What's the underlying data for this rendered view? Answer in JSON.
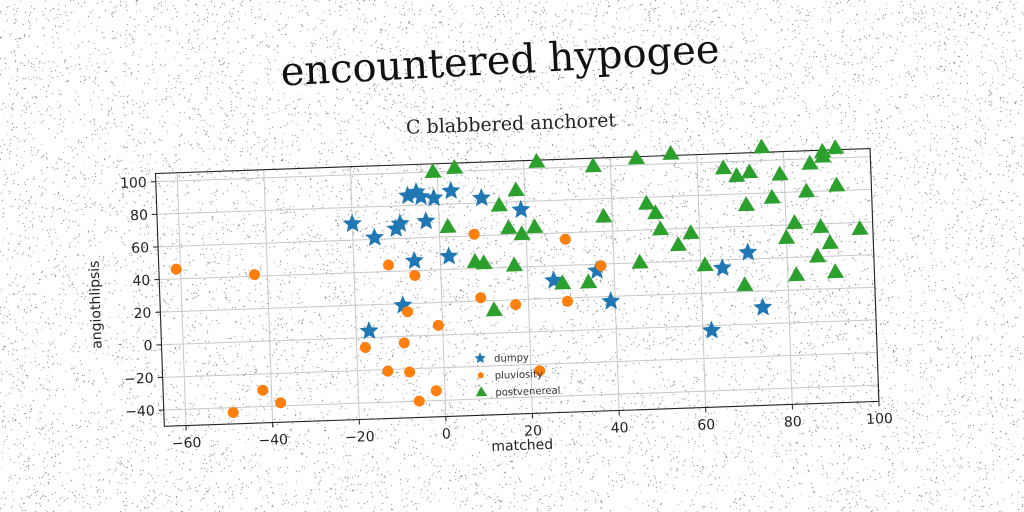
{
  "page": {
    "title": "encountered hypogee"
  },
  "chart_data": {
    "type": "scatter",
    "title": "C blabbered anchoret",
    "xlabel": "matched",
    "ylabel": "angiothlipsis",
    "xlim": [
      -65,
      100
    ],
    "ylim": [
      -50,
      105
    ],
    "xticks": [
      -60,
      -40,
      -20,
      0,
      20,
      40,
      60,
      80,
      100
    ],
    "yticks": [
      -40,
      -20,
      0,
      20,
      40,
      60,
      80,
      100
    ],
    "grid": true,
    "legend": "lower-center",
    "series": [
      {
        "name": "dumpy",
        "marker": "star",
        "color": "#1f77b4",
        "points": [
          [
            -20,
            70
          ],
          [
            -17,
            4
          ],
          [
            -15,
            61
          ],
          [
            -10,
            66
          ],
          [
            -9,
            69
          ],
          [
            -7,
            86
          ],
          [
            -5,
            88
          ],
          [
            -4,
            85
          ],
          [
            -1,
            84
          ],
          [
            3,
            88
          ],
          [
            10,
            83
          ],
          [
            -9,
            19
          ],
          [
            -6,
            46
          ],
          [
            2,
            48
          ],
          [
            -3,
            70
          ],
          [
            19,
            75
          ],
          [
            26,
            31
          ],
          [
            36,
            36
          ],
          [
            39,
            17
          ],
          [
            65,
            35
          ],
          [
            71,
            44
          ],
          [
            74,
            10
          ],
          [
            62,
            -3
          ]
        ]
      },
      {
        "name": "pluviosity",
        "color": "#ff7f0e",
        "marker": "circle",
        "points": [
          [
            -61,
            46
          ],
          [
            -43,
            41
          ],
          [
            -49,
            -43
          ],
          [
            -42,
            -30
          ],
          [
            -38,
            -38
          ],
          [
            -18,
            -6
          ],
          [
            -13,
            -21
          ],
          [
            -12,
            44
          ],
          [
            -9,
            -4
          ],
          [
            -8,
            -22
          ],
          [
            -8,
            15
          ],
          [
            -6,
            37
          ],
          [
            -6,
            -40
          ],
          [
            -2,
            -34
          ],
          [
            -1,
            6
          ],
          [
            8,
            61
          ],
          [
            9,
            22
          ],
          [
            17,
            17
          ],
          [
            22,
            -24
          ],
          [
            29,
            56
          ],
          [
            29,
            18
          ],
          [
            37,
            39
          ]
        ]
      },
      {
        "name": "postvenereal",
        "color": "#2ca02c",
        "marker": "triangle",
        "points": [
          [
            -1,
            100
          ],
          [
            4,
            102
          ],
          [
            2,
            66
          ],
          [
            8,
            44
          ],
          [
            10,
            43
          ],
          [
            12,
            14
          ],
          [
            14,
            78
          ],
          [
            16,
            64
          ],
          [
            17,
            41
          ],
          [
            18,
            87
          ],
          [
            19,
            60
          ],
          [
            22,
            64
          ],
          [
            23,
            104
          ],
          [
            28,
            29
          ],
          [
            34,
            29
          ],
          [
            36,
            100
          ],
          [
            38,
            69
          ],
          [
            46,
            104
          ],
          [
            46,
            40
          ],
          [
            48,
            76
          ],
          [
            50,
            70
          ],
          [
            51,
            60
          ],
          [
            54,
            106
          ],
          [
            55,
            50
          ],
          [
            58,
            57
          ],
          [
            61,
            37
          ],
          [
            66,
            96
          ],
          [
            69,
            91
          ],
          [
            70,
            24
          ],
          [
            71,
            73
          ],
          [
            72,
            93
          ],
          [
            75,
            108
          ],
          [
            77,
            77
          ],
          [
            79,
            91
          ],
          [
            80,
            52
          ],
          [
            82,
            29
          ],
          [
            82,
            61
          ],
          [
            85,
            80
          ],
          [
            86,
            97
          ],
          [
            87,
            40
          ],
          [
            88,
            58
          ],
          [
            89,
            104
          ],
          [
            89,
            101
          ],
          [
            90,
            48
          ],
          [
            91,
            30
          ],
          [
            92,
            83
          ],
          [
            92,
            106
          ],
          [
            97,
            56
          ]
        ]
      }
    ]
  }
}
